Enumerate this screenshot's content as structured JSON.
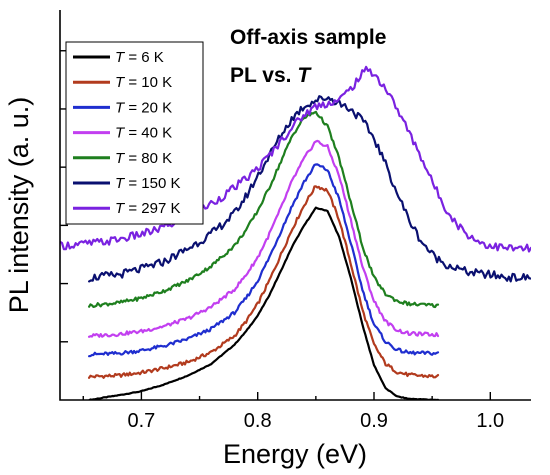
{
  "chart_data": {
    "type": "line",
    "xlabel": "Energy (eV)",
    "ylabel": "PL intensity (a. u.)",
    "xlim": [
      0.63,
      1.035
    ],
    "ylim": [
      0,
      6.7
    ],
    "xticks": [
      0.7,
      0.8,
      0.9,
      1.0
    ],
    "xtick_labels": [
      "0.7",
      "0.8",
      "0.9",
      "1.0"
    ],
    "y_tick_labels_shown": false,
    "grid": false,
    "legend_position": "top-left",
    "annotations": [
      {
        "lines": [
          "Off-axis sample",
          "PL vs. T"
        ]
      }
    ],
    "series": [
      {
        "name": "T = 6 K",
        "legend_var": "T",
        "legend_value": " = 6 K",
        "color": "#000000",
        "x": [
          0.655,
          0.68,
          0.7,
          0.72,
          0.74,
          0.76,
          0.78,
          0.79,
          0.8,
          0.81,
          0.82,
          0.83,
          0.84,
          0.85,
          0.86,
          0.87,
          0.88,
          0.89,
          0.9,
          0.91,
          0.92,
          0.93,
          0.955
        ],
        "y": [
          0.0,
          0.08,
          0.15,
          0.27,
          0.42,
          0.62,
          0.95,
          1.18,
          1.45,
          1.8,
          2.22,
          2.65,
          3.0,
          3.3,
          3.25,
          2.8,
          2.1,
          1.3,
          0.6,
          0.2,
          0.06,
          0.02,
          0.0
        ]
      },
      {
        "name": "T = 10 K",
        "legend_var": "T",
        "legend_value": " = 10 K",
        "color": "#b23b1e",
        "x": [
          0.655,
          0.68,
          0.7,
          0.72,
          0.74,
          0.76,
          0.78,
          0.79,
          0.8,
          0.81,
          0.82,
          0.83,
          0.84,
          0.85,
          0.86,
          0.87,
          0.88,
          0.89,
          0.9,
          0.91,
          0.92,
          0.93,
          0.955
        ],
        "y": [
          0.4,
          0.42,
          0.47,
          0.55,
          0.65,
          0.82,
          1.1,
          1.35,
          1.65,
          2.05,
          2.5,
          2.95,
          3.35,
          3.68,
          3.6,
          3.1,
          2.35,
          1.55,
          0.95,
          0.62,
          0.48,
          0.43,
          0.4
        ]
      },
      {
        "name": "T = 20 K",
        "legend_var": "T",
        "legend_value": " = 20 K",
        "color": "#1f2ecf",
        "x": [
          0.655,
          0.68,
          0.7,
          0.72,
          0.74,
          0.76,
          0.78,
          0.79,
          0.8,
          0.81,
          0.82,
          0.83,
          0.84,
          0.85,
          0.86,
          0.87,
          0.88,
          0.89,
          0.9,
          0.91,
          0.92,
          0.93,
          0.955
        ],
        "y": [
          0.78,
          0.8,
          0.85,
          0.93,
          1.05,
          1.22,
          1.5,
          1.75,
          2.05,
          2.45,
          2.9,
          3.35,
          3.75,
          4.05,
          3.95,
          3.45,
          2.7,
          1.9,
          1.3,
          1.0,
          0.86,
          0.81,
          0.8
        ]
      },
      {
        "name": "T = 40 K",
        "legend_var": "T",
        "legend_value": " = 40 K",
        "color": "#c23ff0",
        "x": [
          0.655,
          0.68,
          0.7,
          0.72,
          0.74,
          0.76,
          0.78,
          0.79,
          0.8,
          0.81,
          0.82,
          0.83,
          0.84,
          0.85,
          0.86,
          0.87,
          0.88,
          0.89,
          0.9,
          0.91,
          0.92,
          0.93,
          0.955
        ],
        "y": [
          1.1,
          1.13,
          1.18,
          1.27,
          1.4,
          1.6,
          1.9,
          2.15,
          2.45,
          2.85,
          3.3,
          3.78,
          4.15,
          4.45,
          4.35,
          3.85,
          3.1,
          2.3,
          1.7,
          1.35,
          1.2,
          1.14,
          1.12
        ]
      },
      {
        "name": "T = 80 K",
        "legend_var": "T",
        "legend_value": " = 80 K",
        "color": "#1e7f1e",
        "x": [
          0.655,
          0.68,
          0.7,
          0.72,
          0.74,
          0.76,
          0.78,
          0.79,
          0.8,
          0.81,
          0.82,
          0.83,
          0.84,
          0.85,
          0.86,
          0.87,
          0.88,
          0.89,
          0.9,
          0.91,
          0.92,
          0.93,
          0.955
        ],
        "y": [
          1.62,
          1.67,
          1.75,
          1.88,
          2.05,
          2.3,
          2.65,
          2.92,
          3.25,
          3.65,
          4.1,
          4.55,
          4.85,
          4.95,
          4.7,
          4.15,
          3.4,
          2.65,
          2.1,
          1.82,
          1.7,
          1.65,
          1.62
        ]
      },
      {
        "name": "T = 150 K",
        "legend_var": "T",
        "legend_value": " = 150 K",
        "color": "#0a1070",
        "x": [
          0.655,
          0.68,
          0.7,
          0.72,
          0.74,
          0.76,
          0.78,
          0.79,
          0.8,
          0.81,
          0.82,
          0.83,
          0.84,
          0.85,
          0.86,
          0.87,
          0.88,
          0.89,
          0.9,
          0.91,
          0.92,
          0.93,
          0.94,
          0.95,
          0.96,
          0.97,
          0.98,
          0.99,
          1.0,
          1.01,
          1.02,
          1.035
        ],
        "y": [
          2.1,
          2.15,
          2.25,
          2.38,
          2.6,
          2.85,
          3.2,
          3.5,
          3.85,
          4.2,
          4.55,
          4.85,
          5.05,
          5.15,
          5.2,
          5.1,
          5.0,
          4.8,
          4.5,
          4.05,
          3.55,
          3.1,
          2.75,
          2.5,
          2.35,
          2.27,
          2.2,
          2.17,
          2.15,
          2.12,
          2.1,
          2.1
        ]
      },
      {
        "name": "T = 297 K",
        "legend_var": "T",
        "legend_value": " = 297 K",
        "color": "#7a22e0",
        "x": [
          0.63,
          0.65,
          0.67,
          0.69,
          0.71,
          0.73,
          0.75,
          0.77,
          0.79,
          0.8,
          0.81,
          0.82,
          0.83,
          0.84,
          0.85,
          0.86,
          0.87,
          0.88,
          0.89,
          0.895,
          0.9,
          0.91,
          0.92,
          0.93,
          0.94,
          0.95,
          0.96,
          0.97,
          0.98,
          0.99,
          1.0,
          1.01,
          1.02,
          1.035
        ],
        "y": [
          2.65,
          2.68,
          2.72,
          2.8,
          2.9,
          3.05,
          3.25,
          3.5,
          3.8,
          3.98,
          4.2,
          4.45,
          4.7,
          4.9,
          5.05,
          5.1,
          5.15,
          5.35,
          5.6,
          5.7,
          5.6,
          5.35,
          5.0,
          4.6,
          4.2,
          3.75,
          3.35,
          3.05,
          2.85,
          2.72,
          2.65,
          2.62,
          2.6,
          2.6
        ]
      }
    ]
  }
}
